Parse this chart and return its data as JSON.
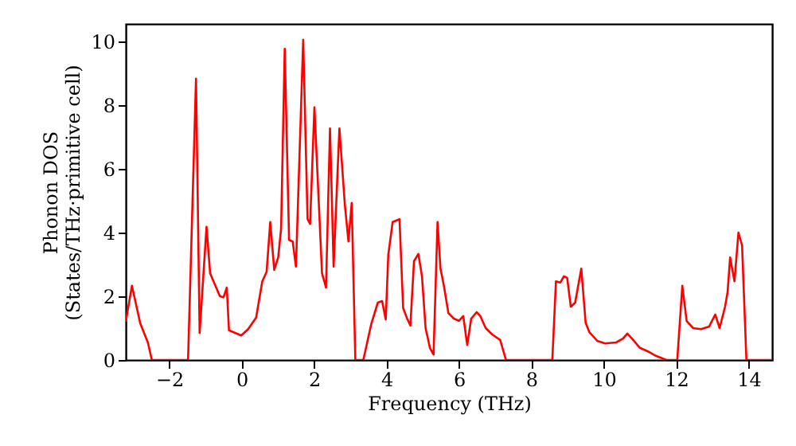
{
  "chart_data": {
    "type": "line",
    "xlabel": "Frequency (THz)",
    "ylabel": "Phonon DOS\n(States/THz·primitive cell)",
    "xlim": [
      -3.2,
      14.65
    ],
    "ylim": [
      0,
      10.55
    ],
    "xticks": [
      -2,
      0,
      2,
      4,
      6,
      8,
      10,
      12,
      14
    ],
    "yticks": [
      0,
      2,
      4,
      6,
      8,
      10
    ],
    "grid": false,
    "marker": "none",
    "line_style": "solid",
    "series": [
      {
        "color": "#ff0000",
        "x": [
          -3.2,
          -3.03,
          -2.8,
          -2.59,
          -2.48,
          -1.48,
          -1.26,
          -1.16,
          -0.97,
          -0.87,
          -0.6,
          -0.5,
          -0.41,
          -0.35,
          -0.01,
          0.18,
          0.4,
          0.57,
          0.69,
          0.79,
          0.9,
          1.01,
          1.09,
          1.19,
          1.31,
          1.41,
          1.5,
          1.7,
          1.82,
          1.89,
          2.01,
          2.22,
          2.33,
          2.44,
          2.54,
          2.7,
          2.85,
          2.95,
          3.04,
          3.14,
          3.36,
          3.58,
          3.76,
          3.88,
          3.98,
          4.05,
          4.17,
          4.36,
          4.46,
          4.57,
          4.66,
          4.76,
          4.88,
          4.98,
          5.08,
          5.2,
          5.3,
          5.41,
          5.49,
          5.59,
          5.71,
          5.86,
          6.0,
          6.12,
          6.23,
          6.34,
          6.49,
          6.59,
          6.74,
          6.92,
          7.14,
          7.3,
          8.58,
          8.68,
          8.8,
          8.9,
          8.99,
          9.09,
          9.21,
          9.38,
          9.5,
          9.6,
          9.82,
          10.04,
          10.34,
          10.53,
          10.65,
          10.78,
          11.0,
          11.22,
          11.44,
          11.73,
          12.03,
          12.17,
          12.29,
          12.47,
          12.69,
          12.91,
          13.08,
          13.2,
          13.35,
          13.42,
          13.49,
          13.61,
          13.72,
          13.82,
          13.94,
          14.65
        ],
        "values": [
          1.2,
          2.33,
          1.15,
          0.55,
          0,
          0,
          8.83,
          0.85,
          4.18,
          2.72,
          2.0,
          1.97,
          2.27,
          0.93,
          0.77,
          0.97,
          1.33,
          2.47,
          2.77,
          4.33,
          2.83,
          3.22,
          4.13,
          9.77,
          3.77,
          3.72,
          2.93,
          10.05,
          4.43,
          4.27,
          7.93,
          2.72,
          2.27,
          7.27,
          2.93,
          7.27,
          4.88,
          3.72,
          4.93,
          0,
          0,
          1.13,
          1.8,
          1.85,
          1.27,
          3.3,
          4.33,
          4.42,
          1.63,
          1.3,
          1.08,
          3.1,
          3.33,
          2.63,
          1.0,
          0.38,
          0.17,
          4.33,
          2.88,
          2.3,
          1.47,
          1.3,
          1.23,
          1.38,
          0.47,
          1.3,
          1.5,
          1.38,
          1.0,
          0.8,
          0.63,
          0,
          0,
          2.47,
          2.43,
          2.63,
          2.58,
          1.67,
          1.8,
          2.87,
          1.17,
          0.88,
          0.6,
          0.52,
          0.55,
          0.67,
          0.83,
          0.67,
          0.38,
          0.27,
          0.13,
          0,
          0,
          2.33,
          1.22,
          1.0,
          0.97,
          1.05,
          1.43,
          1.0,
          1.67,
          2.13,
          3.22,
          2.47,
          4.0,
          3.6,
          0,
          0
        ]
      }
    ]
  }
}
